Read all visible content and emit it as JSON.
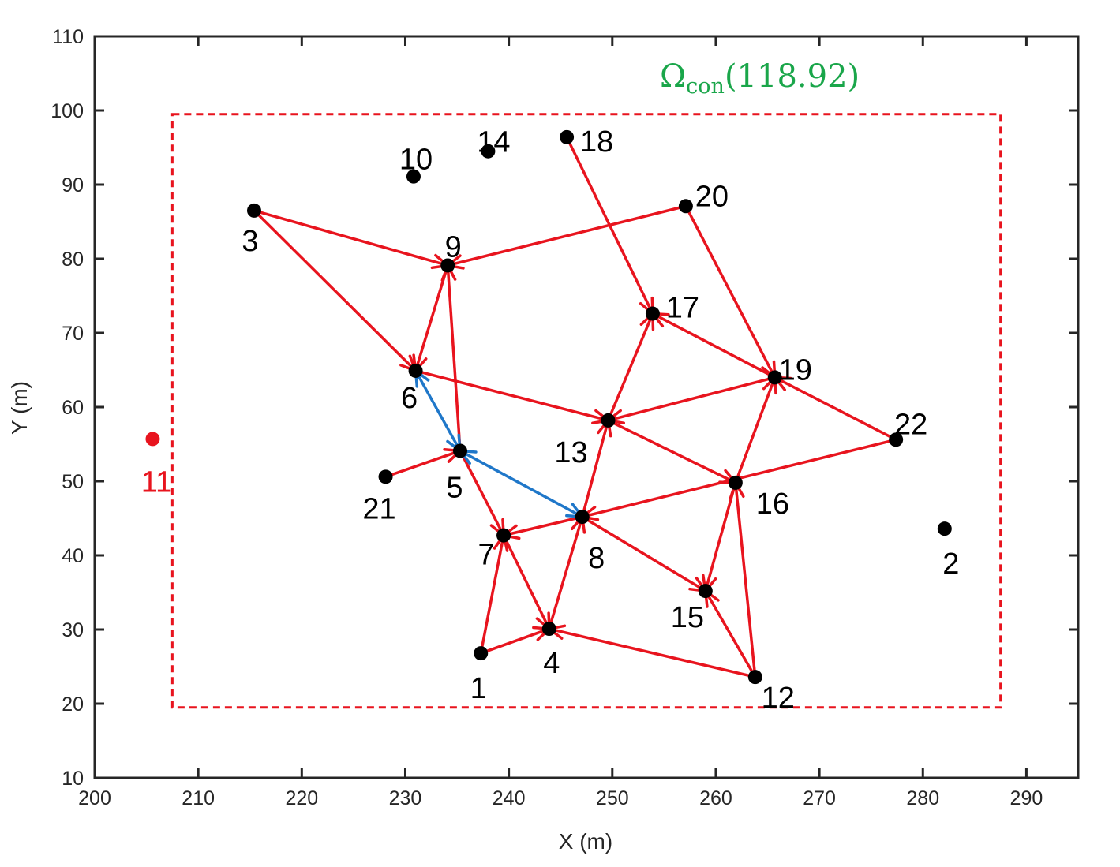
{
  "chart_data": {
    "type": "scatter",
    "title": "",
    "xlabel": "X (m)",
    "ylabel": "Y (m)",
    "xlim": [
      200,
      295
    ],
    "ylim": [
      10,
      110
    ],
    "xticks": [
      200,
      210,
      220,
      230,
      240,
      250,
      260,
      270,
      280,
      290
    ],
    "yticks": [
      10,
      20,
      30,
      40,
      50,
      60,
      70,
      80,
      90,
      100,
      110
    ],
    "grid": false,
    "annotation": {
      "symbol": "Ω",
      "subscript": "con",
      "value": "(118.92)",
      "color": "#1aa64a"
    },
    "region": {
      "style": "dashed",
      "color": "#e8141e",
      "x": [
        207.5,
        287.5
      ],
      "y": [
        19.5,
        99.5
      ]
    },
    "nodes": [
      {
        "id": "1",
        "x": 237.3,
        "y": 26.8,
        "color": "#000000"
      },
      {
        "id": "2",
        "x": 282.1,
        "y": 43.6,
        "color": "#000000"
      },
      {
        "id": "3",
        "x": 215.4,
        "y": 86.5,
        "color": "#000000"
      },
      {
        "id": "4",
        "x": 243.9,
        "y": 30.1,
        "color": "#000000"
      },
      {
        "id": "5",
        "x": 235.3,
        "y": 54.1,
        "color": "#000000"
      },
      {
        "id": "6",
        "x": 231.0,
        "y": 64.9,
        "color": "#000000"
      },
      {
        "id": "7",
        "x": 239.5,
        "y": 42.7,
        "color": "#000000"
      },
      {
        "id": "8",
        "x": 247.1,
        "y": 45.2,
        "color": "#000000"
      },
      {
        "id": "9",
        "x": 234.1,
        "y": 79.1,
        "color": "#000000"
      },
      {
        "id": "10",
        "x": 230.8,
        "y": 91.1,
        "color": "#000000"
      },
      {
        "id": "11",
        "x": 205.6,
        "y": 55.7,
        "color": "#e8141e"
      },
      {
        "id": "12",
        "x": 263.8,
        "y": 23.6,
        "color": "#000000"
      },
      {
        "id": "13",
        "x": 249.6,
        "y": 58.2,
        "color": "#000000"
      },
      {
        "id": "14",
        "x": 238.0,
        "y": 94.5,
        "color": "#000000"
      },
      {
        "id": "15",
        "x": 259.0,
        "y": 35.2,
        "color": "#000000"
      },
      {
        "id": "16",
        "x": 261.9,
        "y": 49.8,
        "color": "#000000"
      },
      {
        "id": "17",
        "x": 253.9,
        "y": 72.6,
        "color": "#000000"
      },
      {
        "id": "18",
        "x": 245.6,
        "y": 96.4,
        "color": "#000000"
      },
      {
        "id": "19",
        "x": 265.7,
        "y": 64.0,
        "color": "#000000"
      },
      {
        "id": "20",
        "x": 257.1,
        "y": 87.1,
        "color": "#000000"
      },
      {
        "id": "21",
        "x": 228.1,
        "y": 50.6,
        "color": "#000000"
      },
      {
        "id": "22",
        "x": 277.4,
        "y": 55.6,
        "color": "#000000"
      }
    ],
    "edges": [
      {
        "from": "3",
        "to": "9",
        "color": "#e8141e",
        "bidirectional": false
      },
      {
        "from": "3",
        "to": "6",
        "color": "#e8141e",
        "bidirectional": false
      },
      {
        "from": "20",
        "to": "9",
        "color": "#e8141e",
        "bidirectional": false
      },
      {
        "from": "9",
        "to": "6",
        "color": "#e8141e",
        "bidirectional": false
      },
      {
        "from": "5",
        "to": "9",
        "color": "#e8141e",
        "bidirectional": false
      },
      {
        "from": "18",
        "to": "17",
        "color": "#e8141e",
        "bidirectional": false
      },
      {
        "from": "20",
        "to": "19",
        "color": "#e8141e",
        "bidirectional": false
      },
      {
        "from": "19",
        "to": "17",
        "color": "#e8141e",
        "bidirectional": false
      },
      {
        "from": "13",
        "to": "17",
        "color": "#e8141e",
        "bidirectional": false
      },
      {
        "from": "6",
        "to": "13",
        "color": "#e8141e",
        "bidirectional": false
      },
      {
        "from": "19",
        "to": "13",
        "color": "#e8141e",
        "bidirectional": false
      },
      {
        "from": "22",
        "to": "19",
        "color": "#e8141e",
        "bidirectional": false
      },
      {
        "from": "13",
        "to": "16",
        "color": "#e8141e",
        "bidirectional": false
      },
      {
        "from": "16",
        "to": "19",
        "color": "#e8141e",
        "bidirectional": false
      },
      {
        "from": "22",
        "to": "8",
        "color": "#e8141e",
        "bidirectional": false
      },
      {
        "from": "8",
        "to": "13",
        "color": "#e8141e",
        "bidirectional": false
      },
      {
        "from": "21",
        "to": "5",
        "color": "#e8141e",
        "bidirectional": false
      },
      {
        "from": "5",
        "to": "7",
        "color": "#e8141e",
        "bidirectional": false
      },
      {
        "from": "8",
        "to": "7",
        "color": "#e8141e",
        "bidirectional": false
      },
      {
        "from": "8",
        "to": "15",
        "color": "#e8141e",
        "bidirectional": false
      },
      {
        "from": "16",
        "to": "15",
        "color": "#e8141e",
        "bidirectional": false
      },
      {
        "from": "12",
        "to": "16",
        "color": "#e8141e",
        "bidirectional": false
      },
      {
        "from": "12",
        "to": "15",
        "color": "#e8141e",
        "bidirectional": false
      },
      {
        "from": "12",
        "to": "4",
        "color": "#e8141e",
        "bidirectional": false
      },
      {
        "from": "4",
        "to": "8",
        "color": "#e8141e",
        "bidirectional": false
      },
      {
        "from": "7",
        "to": "4",
        "color": "#e8141e",
        "bidirectional": false
      },
      {
        "from": "1",
        "to": "7",
        "color": "#e8141e",
        "bidirectional": false
      },
      {
        "from": "1",
        "to": "4",
        "color": "#e8141e",
        "bidirectional": false
      },
      {
        "from": "6",
        "to": "5",
        "color": "#1f77c9",
        "bidirectional": true
      },
      {
        "from": "5",
        "to": "8",
        "color": "#1f77c9",
        "bidirectional": true
      }
    ]
  }
}
